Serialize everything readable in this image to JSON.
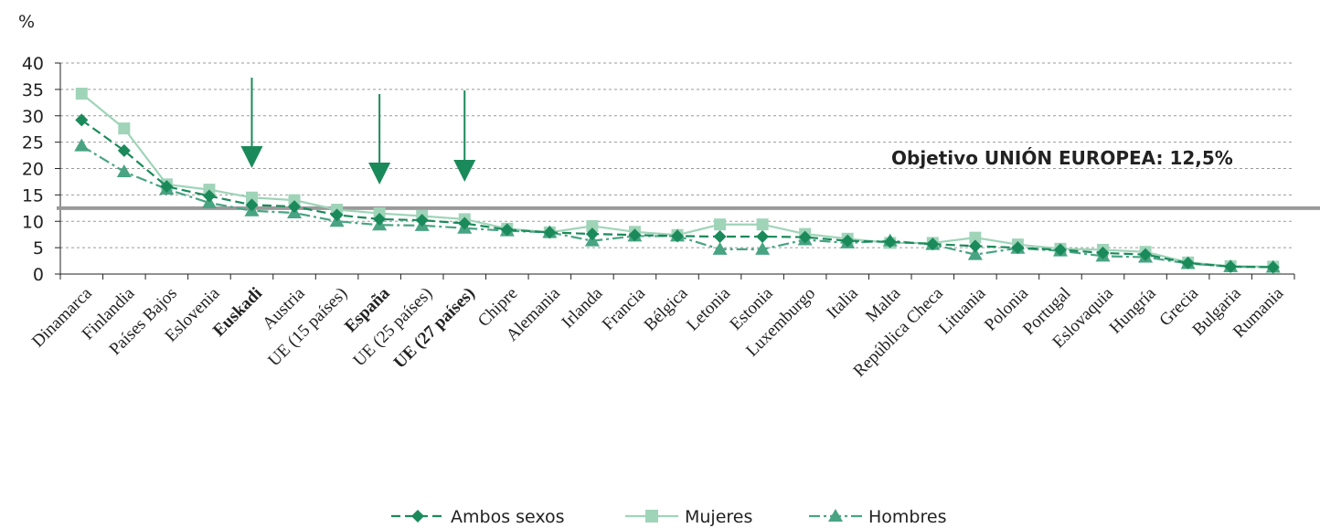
{
  "chart_data": {
    "type": "line",
    "ylabel": "%",
    "ylim": [
      0,
      40
    ],
    "yticks": [
      0,
      5,
      10,
      15,
      20,
      25,
      30,
      35,
      40
    ],
    "grid": "horizontal-dashed",
    "legend_position": "bottom",
    "categories": [
      "Dinamarca",
      "Finlandia",
      "Países Bajos",
      "Eslovenia",
      "Euskadi",
      "Austria",
      "UE (15 países)",
      "España",
      "UE (25 países)",
      "UE (27 países)",
      "Chipre",
      "Alemania",
      "Irlanda",
      "Francia",
      "Bélgica",
      "Letonia",
      "Estonia",
      "Luxemburgo",
      "Italia",
      "Malta",
      "República Checa",
      "Lituania",
      "Polonia",
      "Portugal",
      "Eslovaquia",
      "Hungría",
      "Grecia",
      "Bulgaria",
      "Rumania"
    ],
    "bold_categories": [
      "Euskadi",
      "España",
      "UE (27 países)"
    ],
    "highlighted_categories": [
      "Euskadi",
      "España",
      "UE (27 países)"
    ],
    "series": [
      {
        "name": "Ambos sexos",
        "color": "#1b8a5a",
        "marker": "diamond",
        "dash": "dashed",
        "values": [
          29.2,
          23.4,
          16.6,
          14.8,
          13.1,
          12.8,
          11.2,
          10.4,
          10.2,
          9.6,
          8.4,
          7.9,
          7.6,
          7.4,
          7.2,
          7.1,
          7.1,
          7.0,
          6.3,
          6.1,
          5.7,
          5.3,
          5.0,
          4.6,
          4.0,
          3.7,
          2.1,
          1.4,
          1.3
        ]
      },
      {
        "name": "Mujeres",
        "color": "#9fd4b8",
        "marker": "square",
        "dash": "solid",
        "values": [
          34.2,
          27.6,
          17.0,
          16.0,
          14.5,
          14.0,
          12.2,
          11.5,
          11.0,
          10.4,
          8.6,
          7.9,
          9.1,
          8.0,
          7.4,
          9.4,
          9.4,
          7.6,
          6.7,
          5.9,
          5.9,
          6.9,
          5.6,
          4.8,
          4.6,
          4.2,
          2.2,
          1.5,
          1.4
        ]
      },
      {
        "name": "Hombres",
        "color": "#48a482",
        "marker": "triangle",
        "dash": "dashdot",
        "values": [
          24.3,
          19.4,
          16.1,
          13.5,
          12.0,
          11.6,
          10.0,
          9.3,
          9.2,
          8.7,
          8.2,
          7.9,
          6.3,
          7.2,
          7.2,
          4.7,
          4.7,
          6.5,
          5.9,
          6.3,
          5.6,
          3.7,
          4.9,
          4.4,
          3.4,
          3.2,
          2.0,
          1.4,
          1.3
        ]
      }
    ],
    "target_line": {
      "value": 12.5,
      "label": "Objetivo UNIÓN EUROPEA: 12,5%"
    }
  },
  "colors": {
    "arrow": "#1b8a5a",
    "target_line": "#9a9a9a",
    "grid": "#9a9a9a"
  }
}
